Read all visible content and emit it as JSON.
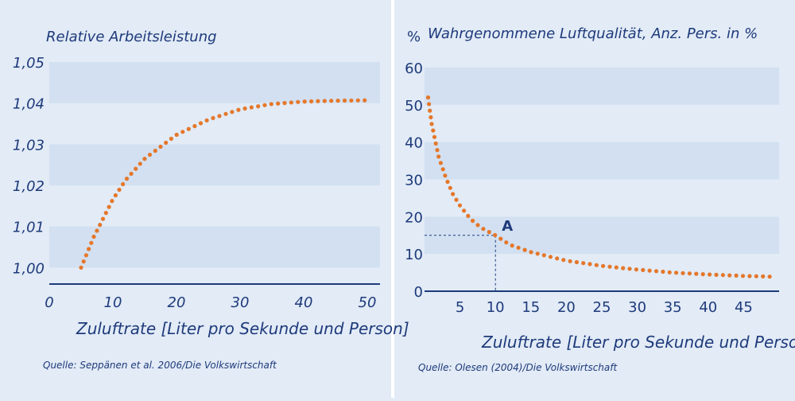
{
  "colors": {
    "panel_bg": "#e2ebf6",
    "band": "#d2e0f1",
    "band_alt": "#e2ebf6",
    "axis": "#1e3a7b",
    "text": "#1e3a7b",
    "curve": "#e5772a",
    "divider": "#ffffff"
  },
  "chart_data": [
    {
      "type": "line",
      "title": "Relative Arbeitsleistung",
      "xlabel": "Zuluftrate [Liter pro Sekunde und Person]",
      "ylabel": "",
      "source": "Quelle: Seppänen et al. 2006/Die Volkswirtschaft",
      "xlim": [
        0,
        52
      ],
      "ylim": [
        0.996,
        1.05
      ],
      "xticks": [
        0,
        10,
        20,
        30,
        40,
        50
      ],
      "xtick_labels": [
        "0",
        "10",
        "20",
        "30",
        "40",
        "50"
      ],
      "yticks": [
        1.0,
        1.01,
        1.02,
        1.03,
        1.04,
        1.05
      ],
      "ytick_labels": [
        "1,00",
        "1,01",
        "1,02",
        "1,03",
        "1,04",
        "1,05"
      ],
      "grid": "alternating horizontal bands",
      "series": [
        {
          "style": "dotted",
          "x": [
            5,
            7,
            10,
            12,
            15,
            20,
            25,
            30,
            35,
            40,
            45,
            50
          ],
          "y": [
            1.0,
            1.0075,
            1.0166,
            1.0213,
            1.0265,
            1.0323,
            1.036,
            1.0385,
            1.0398,
            1.0404,
            1.0406,
            1.0407
          ]
        }
      ]
    },
    {
      "type": "line",
      "title": "Wahrgenommene Luftqualität, Anz. Pers. in %",
      "y_unit": "%",
      "xlabel": "Zuluftrate [Liter pro Sekunde und Person]",
      "ylabel": "",
      "source": "Quelle: Olesen (2004)/Die Volkswirtschaft",
      "xlim": [
        0,
        50
      ],
      "ylim": [
        0,
        60
      ],
      "xticks": [
        5,
        10,
        15,
        20,
        25,
        30,
        35,
        40,
        45
      ],
      "xtick_labels": [
        "5",
        "10",
        "15",
        "20",
        "25",
        "30",
        "35",
        "40",
        "45"
      ],
      "yticks": [
        0,
        10,
        20,
        30,
        40,
        50,
        60
      ],
      "ytick_labels": [
        "0",
        "10",
        "20",
        "30",
        "40",
        "50",
        "60"
      ],
      "grid": "alternating horizontal bands",
      "annotation": {
        "label": "A",
        "x": 10,
        "y": 15
      },
      "series": [
        {
          "style": "dotted",
          "x": [
            0.5,
            1,
            2,
            3,
            4,
            5,
            6,
            7,
            8,
            10,
            12,
            15,
            20,
            25,
            30,
            35,
            40,
            45,
            49
          ],
          "y": [
            52,
            45,
            36,
            30.5,
            26,
            23,
            20.5,
            18.5,
            17,
            15,
            12.5,
            10.5,
            8.2,
            6.8,
            5.8,
            5,
            4.5,
            4.1,
            3.9
          ]
        }
      ]
    }
  ]
}
